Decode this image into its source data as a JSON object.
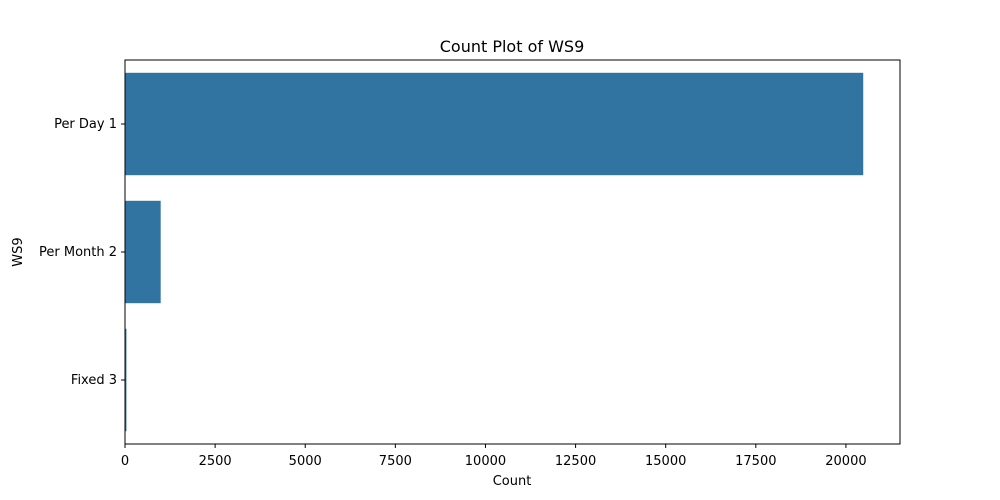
{
  "chart_data": {
    "type": "bar",
    "orientation": "horizontal",
    "title": "Count Plot of WS9",
    "xlabel": "Count",
    "ylabel": "WS9",
    "categories": [
      "Per Day 1",
      "Per Month 2",
      "Fixed 3"
    ],
    "values": [
      20480,
      990,
      40
    ],
    "xlim": [
      0,
      21500
    ],
    "xticks": [
      0,
      2500,
      5000,
      7500,
      10000,
      12500,
      15000,
      17500,
      20000
    ],
    "bar_color": "#3274a1",
    "grid": false,
    "legend": "none"
  }
}
